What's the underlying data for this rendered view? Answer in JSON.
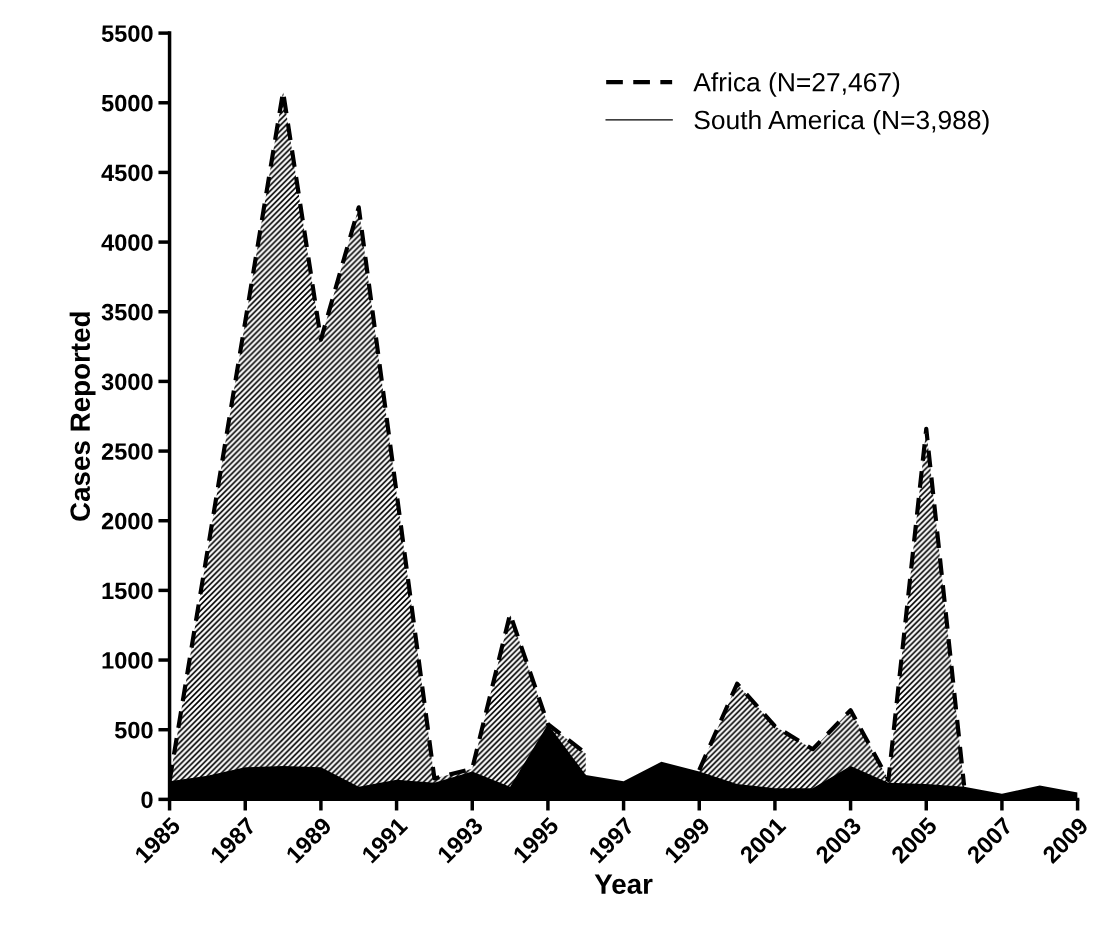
{
  "chart_data": {
    "type": "area",
    "xlabel": "Year",
    "ylabel": "Cases Reported",
    "x": [
      1985,
      1986,
      1987,
      1988,
      1989,
      1990,
      1991,
      1992,
      1993,
      1994,
      1995,
      1996,
      1997,
      1998,
      1999,
      2000,
      2001,
      2002,
      2003,
      2004,
      2005,
      2006,
      2007,
      2008,
      2009
    ],
    "series": [
      {
        "name": "Africa (N=27,467)",
        "color": "#000000",
        "line_style": "dashed",
        "values": [
          130,
          1780,
          3430,
          5080,
          3300,
          4250,
          2200,
          150,
          220,
          1330,
          540,
          330,
          null,
          null,
          210,
          830,
          525,
          360,
          640,
          140,
          2660,
          100,
          null,
          null,
          null
        ]
      },
      {
        "name": "South America (N=3,988)",
        "color": "#000000",
        "line_style": "solid",
        "values": [
          130,
          170,
          230,
          240,
          230,
          90,
          140,
          120,
          200,
          90,
          540,
          175,
          130,
          270,
          200,
          110,
          80,
          80,
          240,
          120,
          110,
          90,
          40,
          100,
          50
        ]
      }
    ],
    "xlim": [
      1985,
      2009
    ],
    "xticks": [
      1985,
      1987,
      1989,
      1991,
      1993,
      1995,
      1997,
      1999,
      2001,
      2003,
      2005,
      2007,
      2009
    ],
    "ylim": [
      0,
      5500
    ],
    "yticks": [
      0,
      500,
      1000,
      1500,
      2000,
      2500,
      3000,
      3500,
      4000,
      4500,
      5000,
      5500
    ],
    "grid": false,
    "legend": "top right"
  }
}
